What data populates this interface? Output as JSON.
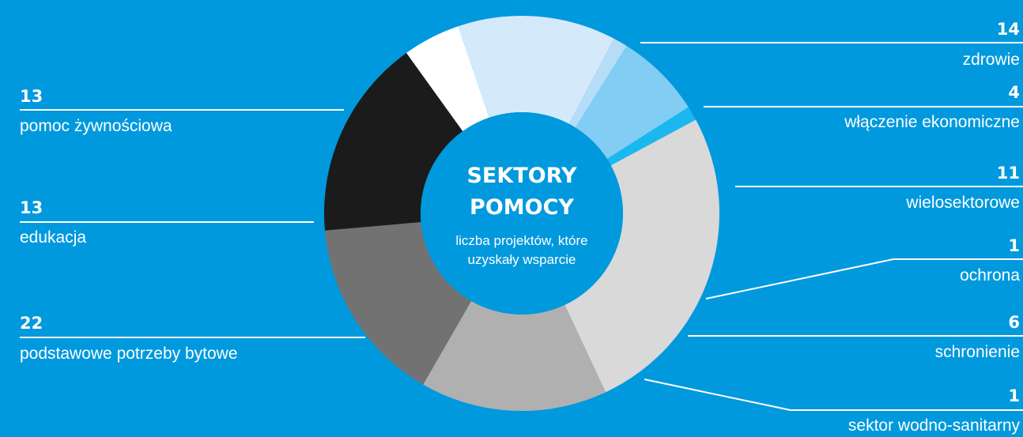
{
  "chart_data": {
    "type": "pie",
    "title": "SEKTORY POMOCY",
    "title_lines": [
      "SEKTORY",
      "POMOCY"
    ],
    "subtitle": "liczba projektów, które uzyskały wsparcie",
    "subtitle_lines": [
      "liczba projektów, które",
      "uzyskały wsparcie"
    ],
    "slices": [
      {
        "label": "zdrowie",
        "value": 14,
        "color": "#1b1b1b"
      },
      {
        "label": "włączenie ekonomiczne",
        "value": 4,
        "color": "#ffffff"
      },
      {
        "label": "wielosektorowe",
        "value": 11,
        "color": "#d4eafa"
      },
      {
        "label": "ochrona",
        "value": 1,
        "color": "#b5ddf8"
      },
      {
        "label": "schronienie",
        "value": 6,
        "color": "#82cdf4"
      },
      {
        "label": "sektor wodno-sanitarny",
        "value": 1,
        "color": "#1ab8ee"
      },
      {
        "label": "podstawowe potrzeby bytowe",
        "value": 22,
        "color": "#d9d9d9"
      },
      {
        "label": "edukacja",
        "value": 13,
        "color": "#b0b0b0"
      },
      {
        "label": "pomoc żywnościowa",
        "value": 13,
        "color": "#727272"
      }
    ]
  }
}
